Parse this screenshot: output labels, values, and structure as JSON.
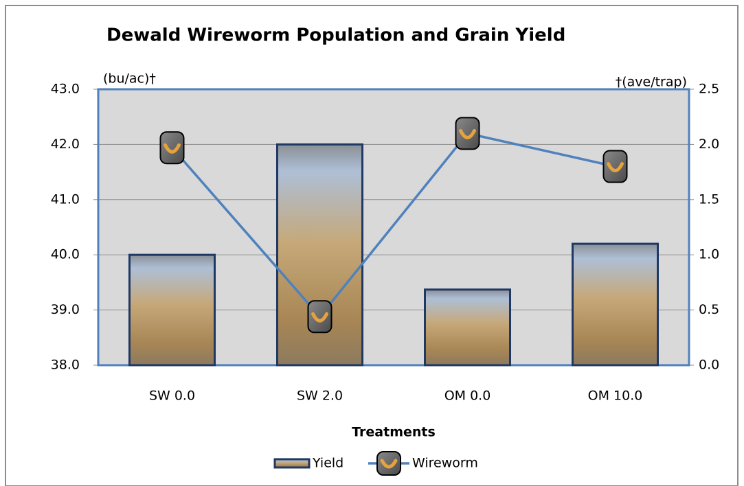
{
  "chart_data": {
    "type": "bar",
    "title": "Dewald Wireworm Population and  Grain Yield",
    "y_label": "(bu/ac)†",
    "y2_label": "†(ave/trap)",
    "x_label": "Treatments",
    "categories": [
      "SW 0.0",
      "SW 2.0",
      "OM 0.0",
      "OM 10.0"
    ],
    "series": [
      {
        "name": "Yield",
        "type": "bar",
        "color": "#1f3864",
        "values": [
          40.0,
          42.0,
          39.37,
          40.2
        ]
      },
      {
        "name": "Wireworm",
        "type": "line",
        "axis": "y2",
        "color": "#4f81bd",
        "values": [
          1.97,
          0.44,
          2.1,
          1.8
        ]
      }
    ],
    "ylim": [
      38,
      43
    ],
    "yticks": [
      {
        "value": 38,
        "label": "38.0"
      },
      {
        "value": 39,
        "label": "39.0"
      },
      {
        "value": 40,
        "label": "40.0"
      },
      {
        "value": 41,
        "label": "41.0"
      },
      {
        "value": 42,
        "label": "42.0"
      },
      {
        "value": 43,
        "label": "43.0"
      }
    ],
    "y2lim": [
      0,
      2.5
    ],
    "y2ticks": [
      {
        "value": 0,
        "label": "0.0"
      },
      0.5,
      {
        "value": 1,
        "label": "1.0"
      },
      1.5,
      {
        "value": 2,
        "label": "2.0"
      },
      2.5
    ],
    "grid": true,
    "legend": "bottom"
  }
}
